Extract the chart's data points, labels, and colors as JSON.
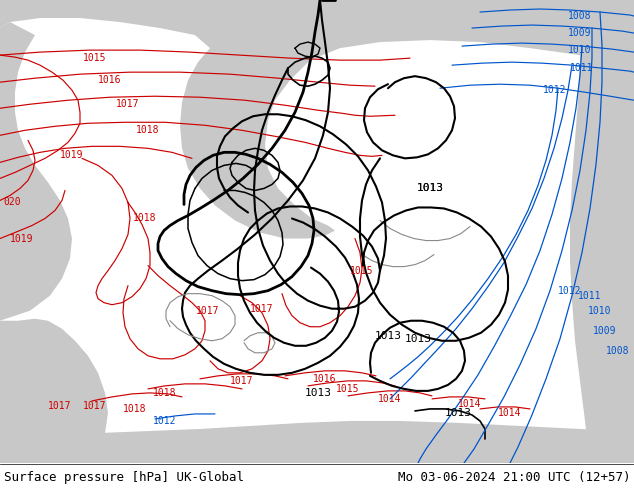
{
  "title_left": "Surface pressure [hPa] UK-Global",
  "title_right": "Mo 03-06-2024 21:00 UTC (12+57)",
  "ocean_color": "#c8c8c8",
  "land_color": "#c8f0a0",
  "font_size_title": 9,
  "red": "#cc0000",
  "blue": "#0055cc",
  "black": "#000000",
  "gray": "#888888",
  "figsize": [
    6.34,
    4.9
  ],
  "dpi": 100
}
